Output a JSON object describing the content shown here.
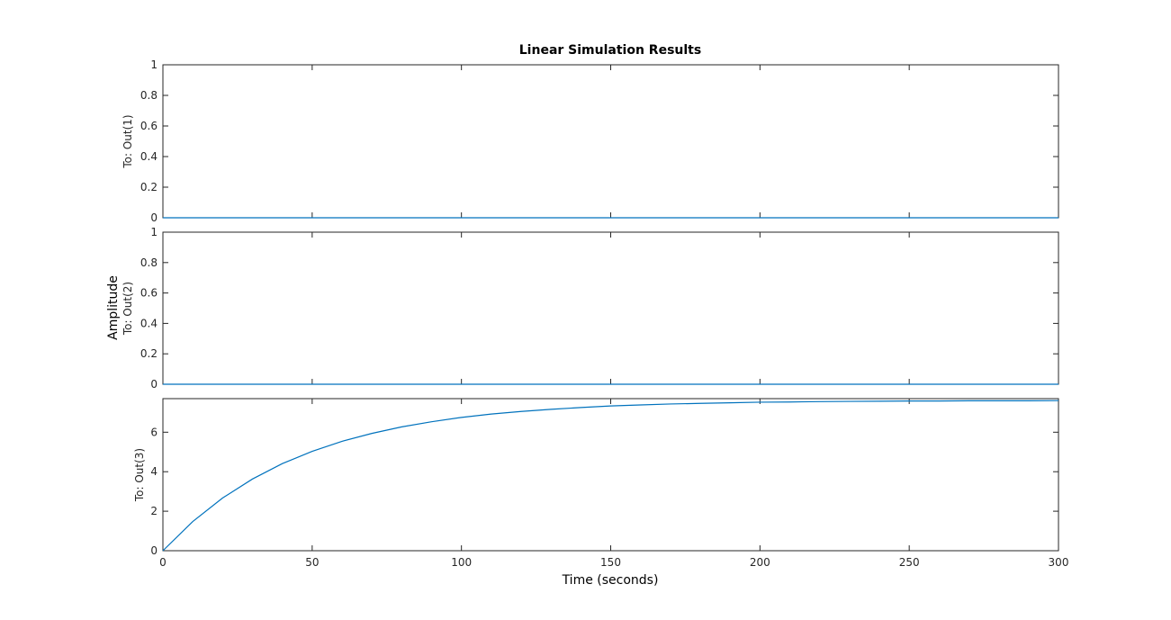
{
  "chart_data": {
    "type": "line",
    "title": "Linear Simulation Results",
    "xlabel": "Time (seconds)",
    "ylabel": "Amplitude",
    "xlim": [
      0,
      300
    ],
    "xticks": [
      0,
      50,
      100,
      150,
      200,
      250,
      300
    ],
    "xtick_labels": [
      "0",
      "50",
      "100",
      "150",
      "200",
      "250",
      "300"
    ],
    "grid": false,
    "line_color": "#0072bd",
    "subplots": [
      {
        "channel_label": "To: Out(1)",
        "ylim": [
          0,
          1
        ],
        "yticks": [
          0,
          0.2,
          0.4,
          0.6,
          0.8,
          1
        ],
        "ytick_labels": [
          "0",
          "0.2",
          "0.4",
          "0.6",
          "0.8",
          "1"
        ],
        "series": [
          {
            "x": [
              0,
              300
            ],
            "y": [
              0,
              0
            ]
          }
        ]
      },
      {
        "channel_label": "To: Out(2)",
        "ylim": [
          0,
          1
        ],
        "yticks": [
          0,
          0.2,
          0.4,
          0.6,
          0.8,
          1
        ],
        "ytick_labels": [
          "0",
          "0.2",
          "0.4",
          "0.6",
          "0.8",
          "1"
        ],
        "series": [
          {
            "x": [
              0,
              300
            ],
            "y": [
              0,
              0
            ]
          }
        ]
      },
      {
        "channel_label": "To: Out(3)",
        "ylim": [
          0,
          7.7
        ],
        "yticks": [
          0,
          2,
          4,
          6
        ],
        "ytick_labels": [
          "0",
          "2",
          "4",
          "6"
        ],
        "series": [
          {
            "x": [
              0,
              10,
              20,
              30,
              40,
              50,
              60,
              70,
              80,
              90,
              100,
              110,
              120,
              130,
              140,
              150,
              160,
              170,
              180,
              190,
              200,
              210,
              220,
              230,
              240,
              250,
              260,
              270,
              280,
              290,
              300
            ],
            "y": [
              0,
              1.48,
              2.67,
              3.63,
              4.41,
              5.03,
              5.54,
              5.94,
              6.27,
              6.53,
              6.75,
              6.92,
              7.05,
              7.16,
              7.25,
              7.33,
              7.38,
              7.43,
              7.46,
              7.49,
              7.52,
              7.53,
              7.55,
              7.56,
              7.57,
              7.58,
              7.58,
              7.59,
              7.59,
              7.59,
              7.6
            ]
          }
        ]
      }
    ]
  }
}
